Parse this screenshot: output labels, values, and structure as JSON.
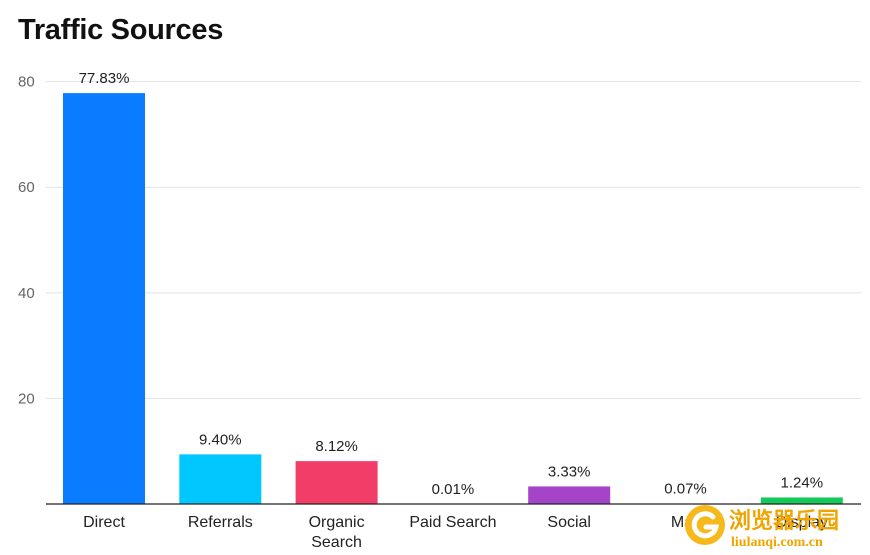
{
  "chart_data": {
    "type": "bar",
    "title": "Traffic Sources",
    "categories": [
      "Direct",
      "Referrals",
      "Organic Search",
      "Paid Search",
      "Social",
      "Mail",
      "Display"
    ],
    "category_lines": [
      [
        "Direct"
      ],
      [
        "Referrals"
      ],
      [
        "Organic",
        "Search"
      ],
      [
        "Paid Search"
      ],
      [
        "Social"
      ],
      [
        "Mail"
      ],
      [
        "Display"
      ]
    ],
    "values": [
      77.83,
      9.4,
      8.12,
      0.01,
      3.33,
      0.07,
      1.24
    ],
    "value_labels": [
      "77.83%",
      "9.40%",
      "8.12%",
      "0.01%",
      "3.33%",
      "0.07%",
      "1.24%"
    ],
    "colors": [
      "#0a7cff",
      "#00c8ff",
      "#f23d69",
      "#9aa0a6",
      "#a543c9",
      "#ff6a00",
      "#12c95a"
    ],
    "yticks": [
      20,
      40,
      60,
      80
    ],
    "ylim": [
      0,
      80.5
    ],
    "grid": true,
    "xlabel": "",
    "ylabel": ""
  },
  "watermark": {
    "text_cn": "浏览器乐园",
    "text_url": "liulanqi.com.cn"
  }
}
